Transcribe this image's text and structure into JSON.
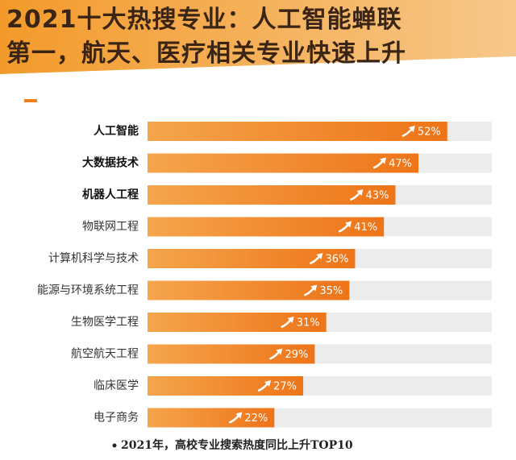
{
  "chart_data": {
    "type": "bar",
    "orientation": "horizontal",
    "title_lines": [
      "2021十大热搜专业：人工智能蝉联",
      "第一，航天、医疗相关专业快速上升"
    ],
    "categories": [
      "人工智能",
      "大数据技术",
      "机器人工程",
      "物联网工程",
      "计算机科学与技术",
      "能源与环境系统工程",
      "生物医学工程",
      "航空航天工程",
      "临床医学",
      "电子商务"
    ],
    "values": [
      52,
      47,
      43,
      41,
      36,
      35,
      31,
      29,
      27,
      22
    ],
    "value_labels": [
      "52%",
      "47%",
      "43%",
      "41%",
      "36%",
      "35%",
      "31%",
      "29%",
      "27%",
      "22%"
    ],
    "color": "#f07d1e",
    "footnote": "2021年，高校专业搜索热度同比上升TOP10"
  }
}
